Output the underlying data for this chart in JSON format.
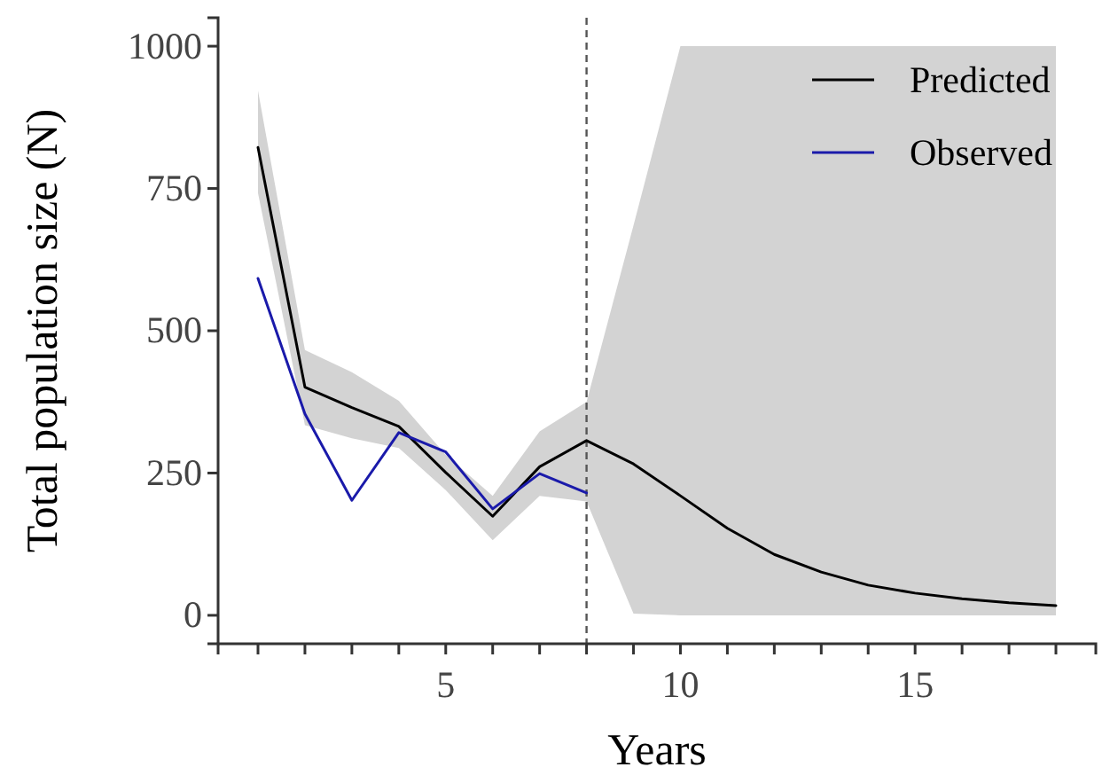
{
  "chart_data": {
    "type": "line",
    "xlabel": "Years",
    "ylabel": "Total population size (N)",
    "xlim": [
      0.15,
      18.85
    ],
    "ylim": [
      -50,
      1050
    ],
    "xticks": [
      {
        "value": 1,
        "label": null
      },
      {
        "value": 2,
        "label": null
      },
      {
        "value": 3,
        "label": null
      },
      {
        "value": 4,
        "label": null
      },
      5,
      {
        "value": 6,
        "label": null
      },
      {
        "value": 7,
        "label": null
      },
      {
        "value": 8,
        "label": null
      },
      {
        "value": 9,
        "label": null
      },
      10,
      {
        "value": 11,
        "label": null
      },
      {
        "value": 12,
        "label": null
      },
      {
        "value": 13,
        "label": null
      },
      {
        "value": 14,
        "label": null
      },
      15,
      {
        "value": 16,
        "label": null
      },
      {
        "value": 17,
        "label": null
      },
      {
        "value": 18,
        "label": null
      }
    ],
    "yticks": [
      0,
      250,
      500,
      750,
      1000
    ],
    "grid": false,
    "legend": "top right",
    "marker": "none",
    "line_style": "solid",
    "ref_lines": [
      {
        "axis": "x",
        "value": 8,
        "color": "#555555",
        "line_style": "dashed"
      }
    ],
    "series": [
      {
        "name": "Predicted",
        "color": "#000000",
        "x": [
          1,
          2,
          3,
          4,
          5,
          6,
          7,
          8,
          9,
          10,
          11,
          12,
          13,
          14,
          15,
          16,
          17,
          18
        ],
        "values": [
          822,
          401,
          365,
          332,
          251,
          174,
          261,
          307,
          266,
          210,
          153,
          107,
          76,
          53,
          39,
          29,
          22,
          17
        ],
        "lower": [
          742,
          334,
          311,
          294,
          220,
          132,
          210,
          200,
          3,
          0,
          0,
          0,
          0,
          0,
          0,
          0,
          0,
          0
        ],
        "upper": [
          922,
          466,
          427,
          377,
          282,
          210,
          323,
          375,
          685,
          1000,
          1000,
          1000,
          1000,
          1000,
          1000,
          1000,
          1000,
          1000
        ]
      },
      {
        "name": "Observed",
        "color": "#1a1aaa",
        "x": [
          1,
          2,
          3,
          4,
          5,
          6,
          7,
          8
        ],
        "values": [
          592,
          354,
          202,
          321,
          287,
          187,
          249,
          215
        ]
      }
    ]
  }
}
